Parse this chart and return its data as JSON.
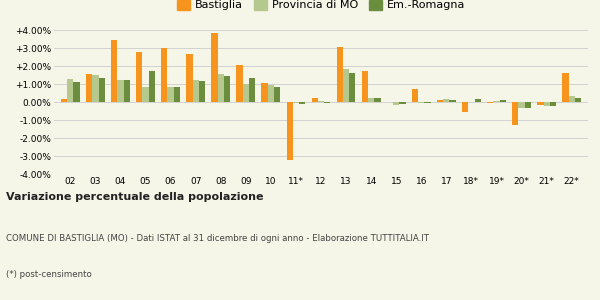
{
  "categories": [
    "02",
    "03",
    "04",
    "05",
    "06",
    "07",
    "08",
    "09",
    "10",
    "11*",
    "12",
    "13",
    "14",
    "15",
    "16",
    "17",
    "18*",
    "19*",
    "20*",
    "21*",
    "22*"
  ],
  "bastiglia": [
    0.15,
    1.55,
    3.45,
    2.8,
    3.0,
    2.65,
    3.85,
    2.05,
    1.05,
    -3.2,
    0.2,
    3.05,
    1.7,
    0.0,
    0.75,
    0.1,
    -0.55,
    -0.05,
    -1.25,
    -0.15,
    1.6
  ],
  "provincia": [
    1.3,
    1.5,
    1.2,
    0.85,
    0.85,
    1.2,
    1.55,
    1.0,
    0.95,
    -0.05,
    0.05,
    1.85,
    0.2,
    -0.15,
    -0.05,
    0.15,
    0.0,
    0.05,
    -0.35,
    -0.2,
    0.35
  ],
  "emromagna": [
    1.1,
    1.35,
    1.25,
    1.7,
    0.85,
    1.15,
    1.45,
    1.35,
    0.85,
    -0.1,
    -0.05,
    1.6,
    0.2,
    -0.1,
    -0.05,
    0.1,
    0.15,
    0.1,
    -0.35,
    -0.2,
    0.25
  ],
  "color_bastiglia": "#f7941d",
  "color_provincia": "#b5c98e",
  "color_emromagna": "#6b8e3e",
  "legend_labels": [
    "Bastiglia",
    "Provincia di MO",
    "Em.-Romagna"
  ],
  "title": "Variazione percentuale della popolazione",
  "footer1": "COMUNE DI BASTIGLIA (MO) - Dati ISTAT al 31 dicembre di ogni anno - Elaborazione TUTTITALIA.IT",
  "footer2": "(*) post-censimento",
  "ylim": [
    -4.0,
    4.0
  ],
  "yticks": [
    -4.0,
    -3.0,
    -2.0,
    -1.0,
    0.0,
    1.0,
    2.0,
    3.0,
    4.0
  ],
  "ytick_labels": [
    "-4.00%",
    "-3.00%",
    "-2.00%",
    "-1.00%",
    "0.00%",
    "+1.00%",
    "+2.00%",
    "+3.00%",
    "+4.00%"
  ],
  "background_color": "#f5f5e8",
  "bar_width": 0.25
}
